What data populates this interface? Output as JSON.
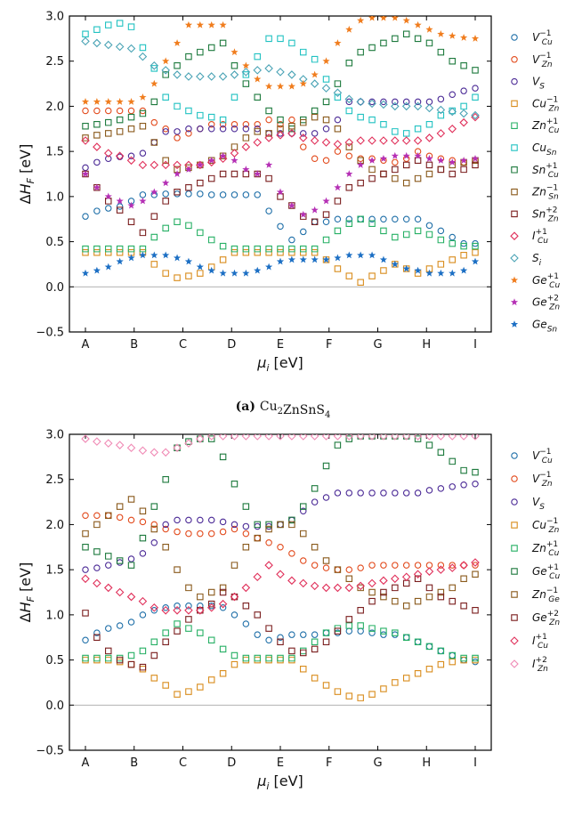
{
  "chart_data": [
    {
      "type": "scatter",
      "caption_tag": "(a)",
      "caption_text": "Cu2ZnSnS4",
      "ylabel": "ΔH_F [eV]",
      "xlabel": "μ_i [eV]",
      "ylim": [
        -0.5,
        3.0
      ],
      "yticks": [
        -0.5,
        0.0,
        0.5,
        1.0,
        1.5,
        2.0,
        2.5,
        3.0
      ],
      "xticks": [
        "A",
        "B",
        "C",
        "D",
        "E",
        "F",
        "G",
        "H",
        "I"
      ],
      "zero_line": true,
      "legend_position": "right",
      "series": [
        {
          "name": "V_Cu^-1",
          "color": "#1f6fa8",
          "marker": "circle",
          "values": [
            0.78,
            0.84,
            0.87,
            0.89,
            0.95,
            1.02,
            1.02,
            1.03,
            1.03,
            1.03,
            1.03,
            1.02,
            1.02,
            1.02,
            1.02,
            1.02,
            0.84,
            0.67,
            0.52,
            0.61,
            0.72,
            0.72,
            0.75,
            0.75,
            0.75,
            0.75,
            0.75,
            0.75,
            0.75,
            0.75,
            0.68,
            0.62,
            0.55,
            0.48,
            0.48
          ]
        },
        {
          "name": "V_Zn^-1",
          "color": "#e24a1c",
          "marker": "circle",
          "values": [
            1.95,
            1.95,
            1.95,
            1.95,
            1.95,
            1.95,
            1.82,
            1.75,
            1.65,
            1.7,
            1.75,
            1.8,
            1.8,
            1.8,
            1.8,
            1.8,
            1.85,
            1.8,
            1.85,
            1.55,
            1.42,
            1.4,
            1.5,
            1.45,
            1.42,
            1.42,
            1.4,
            1.38,
            1.42,
            1.5,
            1.45,
            1.42,
            1.4,
            1.38,
            1.4
          ]
        },
        {
          "name": "V_S",
          "color": "#4b2a96",
          "marker": "circle",
          "values": [
            1.32,
            1.38,
            1.42,
            1.44,
            1.45,
            1.48,
            1.6,
            1.72,
            1.72,
            1.75,
            1.75,
            1.75,
            1.75,
            1.75,
            1.75,
            1.75,
            1.7,
            1.7,
            1.7,
            1.7,
            1.7,
            1.75,
            1.85,
            2.05,
            2.05,
            2.05,
            2.05,
            2.05,
            2.05,
            2.05,
            2.05,
            2.08,
            2.13,
            2.17,
            2.2
          ]
        },
        {
          "name": "Cu_Zn^-1",
          "color": "#d98d1e",
          "marker": "square",
          "values": [
            0.38,
            0.38,
            0.38,
            0.38,
            0.38,
            0.38,
            0.25,
            0.15,
            0.1,
            0.12,
            0.15,
            0.22,
            0.3,
            0.38,
            0.38,
            0.38,
            0.38,
            0.38,
            0.38,
            0.38,
            0.38,
            0.3,
            0.2,
            0.12,
            0.05,
            0.12,
            0.18,
            0.25,
            0.2,
            0.15,
            0.2,
            0.25,
            0.3,
            0.35,
            0.38
          ]
        },
        {
          "name": "Zn_Cu^+1",
          "color": "#27b065",
          "marker": "square",
          "values": [
            0.42,
            0.42,
            0.42,
            0.42,
            0.42,
            0.42,
            0.55,
            0.65,
            0.72,
            0.68,
            0.6,
            0.52,
            0.45,
            0.42,
            0.42,
            0.42,
            0.42,
            0.42,
            0.42,
            0.42,
            0.42,
            0.52,
            0.62,
            0.7,
            0.75,
            0.7,
            0.62,
            0.55,
            0.58,
            0.62,
            0.58,
            0.52,
            0.48,
            0.45,
            0.45
          ]
        },
        {
          "name": "Cu_Sn",
          "color": "#22c2c2",
          "marker": "square",
          "values": [
            2.8,
            2.85,
            2.9,
            2.92,
            2.88,
            2.65,
            2.42,
            2.1,
            2.0,
            1.95,
            1.9,
            1.88,
            1.85,
            2.1,
            2.35,
            2.55,
            2.75,
            2.75,
            2.7,
            2.6,
            2.52,
            2.3,
            2.1,
            1.95,
            1.88,
            1.85,
            1.8,
            1.72,
            1.7,
            1.75,
            1.8,
            1.9,
            1.95,
            2.0,
            2.1
          ]
        },
        {
          "name": "Sn_Cu^+1",
          "color": "#1e7a3e",
          "marker": "square",
          "values": [
            1.78,
            1.8,
            1.82,
            1.85,
            1.88,
            1.92,
            2.05,
            2.35,
            2.45,
            2.55,
            2.6,
            2.65,
            2.7,
            2.45,
            2.25,
            2.1,
            1.95,
            1.85,
            1.75,
            1.85,
            1.95,
            2.05,
            2.25,
            2.48,
            2.6,
            2.65,
            2.7,
            2.75,
            2.8,
            2.75,
            2.7,
            2.6,
            2.5,
            2.45,
            2.4
          ]
        },
        {
          "name": "Zn_Sn^-1",
          "color": "#8a5a1c",
          "marker": "square",
          "values": [
            1.65,
            1.68,
            1.7,
            1.72,
            1.75,
            1.78,
            1.6,
            1.4,
            1.3,
            1.32,
            1.35,
            1.4,
            1.45,
            1.55,
            1.65,
            1.72,
            1.7,
            1.75,
            1.78,
            1.82,
            1.88,
            1.85,
            1.75,
            1.55,
            1.4,
            1.3,
            1.25,
            1.2,
            1.15,
            1.2,
            1.25,
            1.3,
            1.35,
            1.38,
            1.4
          ]
        },
        {
          "name": "Sn_Zn^+2",
          "color": "#7b1f1f",
          "marker": "square",
          "values": [
            1.25,
            1.1,
            0.95,
            0.85,
            0.72,
            0.6,
            0.78,
            0.95,
            1.05,
            1.1,
            1.15,
            1.2,
            1.25,
            1.25,
            1.25,
            1.25,
            1.2,
            1.0,
            0.9,
            0.78,
            0.72,
            0.8,
            0.95,
            1.1,
            1.15,
            1.2,
            1.25,
            1.3,
            1.35,
            1.4,
            1.35,
            1.3,
            1.25,
            1.3,
            1.35
          ]
        },
        {
          "name": "I_Cu^+1",
          "color": "#e0305a",
          "marker": "diamond",
          "values": [
            1.62,
            1.55,
            1.48,
            1.45,
            1.4,
            1.35,
            1.35,
            1.35,
            1.35,
            1.35,
            1.35,
            1.38,
            1.42,
            1.48,
            1.55,
            1.6,
            1.65,
            1.68,
            1.7,
            1.65,
            1.62,
            1.6,
            1.58,
            1.6,
            1.62,
            1.62,
            1.62,
            1.62,
            1.62,
            1.62,
            1.65,
            1.7,
            1.75,
            1.82,
            1.88
          ]
        },
        {
          "name": "S_i",
          "color": "#4aa3b5",
          "marker": "diamond",
          "values": [
            2.72,
            2.7,
            2.68,
            2.66,
            2.64,
            2.55,
            2.45,
            2.4,
            2.35,
            2.33,
            2.33,
            2.33,
            2.33,
            2.35,
            2.38,
            2.4,
            2.42,
            2.38,
            2.35,
            2.3,
            2.25,
            2.2,
            2.15,
            2.08,
            2.05,
            2.03,
            2.02,
            2.0,
            2.0,
            2.0,
            1.98,
            1.96,
            1.94,
            1.92,
            1.9
          ]
        },
        {
          "name": "Ge_Cu^+1",
          "color": "#f07d1e",
          "marker": "star",
          "values": [
            2.05,
            2.05,
            2.05,
            2.05,
            2.05,
            2.1,
            2.25,
            2.5,
            2.7,
            2.9,
            2.9,
            2.9,
            2.9,
            2.6,
            2.45,
            2.3,
            2.22,
            2.22,
            2.22,
            2.25,
            2.35,
            2.5,
            2.7,
            2.85,
            2.95,
            2.98,
            2.98,
            2.98,
            2.95,
            2.9,
            2.85,
            2.8,
            2.78,
            2.76,
            2.75
          ]
        },
        {
          "name": "Ge_Zn^+2",
          "color": "#b530b5",
          "marker": "star",
          "values": [
            1.25,
            1.1,
            1.0,
            0.95,
            0.9,
            0.95,
            1.05,
            1.15,
            1.25,
            1.3,
            1.35,
            1.4,
            1.45,
            1.4,
            1.3,
            1.25,
            1.35,
            1.05,
            0.9,
            0.8,
            0.85,
            0.95,
            1.1,
            1.25,
            1.35,
            1.4,
            1.42,
            1.45,
            1.45,
            1.45,
            1.42,
            1.4,
            1.38,
            1.4,
            1.42
          ]
        },
        {
          "name": "Ge_Sn",
          "color": "#1c6fc4",
          "marker": "star",
          "values": [
            0.15,
            0.18,
            0.22,
            0.28,
            0.32,
            0.35,
            0.35,
            0.35,
            0.32,
            0.28,
            0.22,
            0.18,
            0.15,
            0.15,
            0.15,
            0.18,
            0.22,
            0.28,
            0.3,
            0.3,
            0.3,
            0.3,
            0.32,
            0.35,
            0.35,
            0.35,
            0.3,
            0.25,
            0.2,
            0.18,
            0.15,
            0.15,
            0.15,
            0.18,
            0.28
          ]
        }
      ]
    },
    {
      "type": "scatter",
      "caption_tag": "(b)",
      "caption_text": "Cu2ZnGeS4",
      "ylabel": "ΔH_F [eV]",
      "xlabel": "μ_i [eV]",
      "ylim": [
        -0.5,
        3.0
      ],
      "yticks": [
        -0.5,
        0.0,
        0.5,
        1.0,
        1.5,
        2.0,
        2.5,
        3.0
      ],
      "xticks": [
        "A",
        "B",
        "C",
        "D",
        "E",
        "F",
        "G",
        "H",
        "I"
      ],
      "zero_line": true,
      "legend_position": "right",
      "series": [
        {
          "name": "V_Cu^-1",
          "color": "#1f6fa8",
          "marker": "circle",
          "values": [
            0.72,
            0.8,
            0.85,
            0.88,
            0.92,
            1.0,
            1.05,
            1.08,
            1.1,
            1.1,
            1.1,
            1.1,
            1.08,
            1.0,
            0.9,
            0.78,
            0.72,
            0.75,
            0.78,
            0.78,
            0.78,
            0.8,
            0.8,
            0.82,
            0.82,
            0.8,
            0.78,
            0.78,
            0.75,
            0.7,
            0.65,
            0.6,
            0.55,
            0.5,
            0.48
          ]
        },
        {
          "name": "V_Zn^-1",
          "color": "#e24a1c",
          "marker": "circle",
          "values": [
            2.1,
            2.1,
            2.1,
            2.08,
            2.05,
            2.03,
            2.0,
            1.95,
            1.92,
            1.9,
            1.9,
            1.9,
            1.92,
            1.95,
            1.9,
            1.85,
            1.8,
            1.75,
            1.68,
            1.6,
            1.55,
            1.52,
            1.5,
            1.5,
            1.52,
            1.55,
            1.55,
            1.55,
            1.55,
            1.55,
            1.55,
            1.55,
            1.55,
            1.55,
            1.55
          ]
        },
        {
          "name": "V_S",
          "color": "#4b2a96",
          "marker": "circle",
          "values": [
            1.5,
            1.52,
            1.55,
            1.58,
            1.62,
            1.68,
            1.8,
            2.0,
            2.05,
            2.05,
            2.05,
            2.05,
            2.03,
            2.0,
            1.98,
            1.98,
            1.98,
            2.0,
            2.05,
            2.15,
            2.25,
            2.3,
            2.35,
            2.35,
            2.35,
            2.35,
            2.35,
            2.35,
            2.35,
            2.35,
            2.38,
            2.4,
            2.42,
            2.44,
            2.45
          ]
        },
        {
          "name": "Cu_Zn^-1",
          "color": "#d98d1e",
          "marker": "square",
          "values": [
            0.5,
            0.5,
            0.5,
            0.48,
            0.45,
            0.4,
            0.3,
            0.22,
            0.12,
            0.15,
            0.2,
            0.28,
            0.35,
            0.45,
            0.5,
            0.5,
            0.5,
            0.5,
            0.5,
            0.4,
            0.3,
            0.22,
            0.15,
            0.1,
            0.08,
            0.12,
            0.18,
            0.25,
            0.3,
            0.35,
            0.4,
            0.45,
            0.48,
            0.5,
            0.5
          ]
        },
        {
          "name": "Zn_Cu^+1",
          "color": "#27b065",
          "marker": "square",
          "values": [
            0.52,
            0.52,
            0.52,
            0.52,
            0.55,
            0.6,
            0.7,
            0.8,
            0.9,
            0.85,
            0.8,
            0.72,
            0.62,
            0.55,
            0.52,
            0.52,
            0.52,
            0.52,
            0.52,
            0.6,
            0.7,
            0.8,
            0.85,
            0.88,
            0.88,
            0.85,
            0.82,
            0.8,
            0.75,
            0.7,
            0.65,
            0.6,
            0.55,
            0.52,
            0.52
          ]
        },
        {
          "name": "Ge_Cu^+1",
          "color": "#1e7a3e",
          "marker": "square",
          "values": [
            1.75,
            1.7,
            1.65,
            1.6,
            1.55,
            1.85,
            2.2,
            2.5,
            2.85,
            2.92,
            2.95,
            2.95,
            2.75,
            2.45,
            2.2,
            2.0,
            2.0,
            2.0,
            2.05,
            2.2,
            2.4,
            2.65,
            2.88,
            2.95,
            2.98,
            2.98,
            2.98,
            2.98,
            2.98,
            2.95,
            2.88,
            2.8,
            2.7,
            2.6,
            2.58
          ]
        },
        {
          "name": "Zn_Ge^-1",
          "color": "#8a5a1c",
          "marker": "square",
          "values": [
            1.9,
            2.0,
            2.1,
            2.2,
            2.28,
            2.15,
            1.95,
            1.75,
            1.5,
            1.3,
            1.2,
            1.25,
            1.3,
            1.55,
            1.75,
            1.85,
            1.95,
            2.0,
            2.0,
            1.9,
            1.75,
            1.6,
            1.5,
            1.4,
            1.3,
            1.25,
            1.2,
            1.15,
            1.1,
            1.15,
            1.2,
            1.25,
            1.3,
            1.4,
            1.45
          ]
        },
        {
          "name": "Ge_Zn^+2",
          "color": "#7b1f1f",
          "marker": "square",
          "values": [
            1.02,
            0.75,
            0.6,
            0.5,
            0.45,
            0.42,
            0.55,
            0.7,
            0.82,
            0.95,
            1.05,
            1.12,
            1.25,
            1.2,
            1.1,
            1.0,
            0.85,
            0.7,
            0.6,
            0.58,
            0.62,
            0.7,
            0.82,
            0.95,
            1.05,
            1.15,
            1.25,
            1.3,
            1.35,
            1.4,
            1.3,
            1.2,
            1.15,
            1.1,
            1.05
          ]
        },
        {
          "name": "I_Cu^+1",
          "color": "#e0305a",
          "marker": "diamond",
          "values": [
            1.4,
            1.35,
            1.3,
            1.25,
            1.2,
            1.15,
            1.08,
            1.05,
            1.05,
            1.05,
            1.05,
            1.08,
            1.12,
            1.2,
            1.3,
            1.42,
            1.55,
            1.45,
            1.38,
            1.35,
            1.32,
            1.3,
            1.3,
            1.3,
            1.32,
            1.35,
            1.38,
            1.4,
            1.42,
            1.45,
            1.48,
            1.5,
            1.52,
            1.55,
            1.58
          ]
        },
        {
          "name": "I_Zn^+2",
          "color": "#f08ab5",
          "marker": "diamond",
          "values": [
            2.95,
            2.92,
            2.9,
            2.88,
            2.85,
            2.82,
            2.8,
            2.8,
            2.85,
            2.9,
            2.95,
            2.98,
            2.98,
            2.98,
            2.98,
            2.98,
            2.98,
            2.98,
            2.98,
            2.98,
            2.98,
            2.98,
            2.98,
            2.98,
            2.98,
            2.98,
            2.98,
            2.98,
            2.98,
            2.98,
            2.98,
            2.98,
            2.98,
            2.98,
            2.98
          ]
        }
      ]
    }
  ]
}
